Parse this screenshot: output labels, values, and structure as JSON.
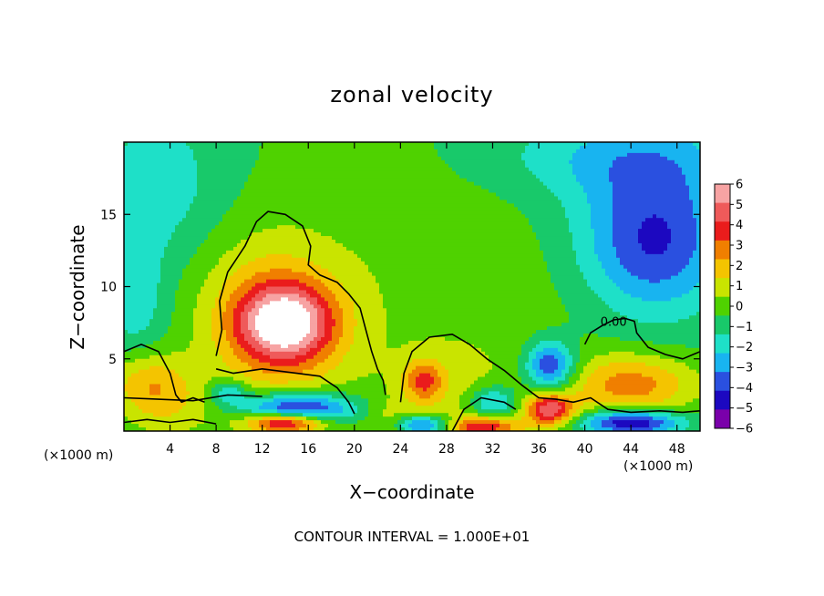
{
  "chart_data": {
    "type": "heatmap",
    "title": "zonal velocity",
    "xlabel": "X−coordinate",
    "ylabel": "Z−coordinate",
    "x_unit_left": "(×1000 m)",
    "x_unit_right": "(×1000 m)",
    "footer": "CONTOUR INTERVAL = 1.000E+01",
    "contour_label": "0.00",
    "xlim": [
      0,
      50
    ],
    "ylim": [
      0,
      20
    ],
    "x_ticks": [
      4,
      8,
      12,
      16,
      20,
      24,
      28,
      32,
      36,
      40,
      44,
      48
    ],
    "y_ticks": [
      5,
      10,
      15
    ],
    "colorbar": {
      "ticks": [
        "6",
        "5",
        "4",
        "3",
        "2",
        "1",
        "0",
        "−1",
        "−2",
        "−3",
        "−4",
        "−5",
        "−6"
      ],
      "colors": [
        "#f7a3a3",
        "#ef5a5a",
        "#ea1c1c",
        "#f07f00",
        "#f4c400",
        "#c9e400",
        "#4fd200",
        "#18c96a",
        "#1ee0c8",
        "#18b4f0",
        "#2a50e0",
        "#1c08c0",
        "#7a00aa"
      ]
    },
    "background_value": -1.0,
    "features": [
      {
        "x": 14,
        "z": 7.5,
        "value": 5.8,
        "sx": 2.8,
        "sz": 1.8
      },
      {
        "x": 13.5,
        "z": 6.5,
        "value": 2.5,
        "sx": 4.5,
        "sz": 3.5
      },
      {
        "x": 12,
        "z": 10,
        "value": 1.2,
        "sx": 4.5,
        "sz": 3.5
      },
      {
        "x": 15,
        "z": 1.5,
        "value": -5.5,
        "sx": 3.5,
        "sz": 0.8
      },
      {
        "x": 14,
        "z": 0.6,
        "value": 6.5,
        "sx": 2.5,
        "sz": 0.5
      },
      {
        "x": 9,
        "z": 2.7,
        "value": -2.5,
        "sx": 1.2,
        "sz": 0.6
      },
      {
        "x": 2,
        "z": 3.5,
        "value": 2.5,
        "sx": 2.5,
        "sz": 1.5
      },
      {
        "x": 4,
        "z": 1.5,
        "value": 1.5,
        "sx": 3,
        "sz": 1.5
      },
      {
        "x": 26,
        "z": 3.5,
        "value": 3.2,
        "sx": 1.2,
        "sz": 1.0
      },
      {
        "x": 28,
        "z": 2.5,
        "value": 1.2,
        "sx": 4,
        "sz": 2.5
      },
      {
        "x": 31,
        "z": 0.3,
        "value": 4.5,
        "sx": 2.5,
        "sz": 0.5
      },
      {
        "x": 26,
        "z": 0.4,
        "value": -4.5,
        "sx": 2,
        "sz": 0.5
      },
      {
        "x": 37,
        "z": 4.5,
        "value": -4.5,
        "sx": 1.5,
        "sz": 1.2
      },
      {
        "x": 37,
        "z": 1.5,
        "value": 5.5,
        "sx": 1.5,
        "sz": 0.8
      },
      {
        "x": 44,
        "z": 3.2,
        "value": 3.5,
        "sx": 4,
        "sz": 1.5
      },
      {
        "x": 44,
        "z": 0.6,
        "value": -5.5,
        "sx": 3,
        "sz": 0.6
      },
      {
        "x": 32,
        "z": 2,
        "value": -3.0,
        "sx": 1.5,
        "sz": 0.8
      },
      {
        "x": 23,
        "z": 0.5,
        "value": 1.5,
        "sx": 1.5,
        "sz": 1.0
      },
      {
        "x": 24,
        "z": 12,
        "value": 0.6,
        "sx": 8,
        "sz": 6
      },
      {
        "x": 33,
        "z": 8,
        "value": 0.4,
        "sx": 6,
        "sz": 5
      },
      {
        "x": 46,
        "z": 15,
        "value": -2.6,
        "sx": 5,
        "sz": 4
      },
      {
        "x": 46,
        "z": 12,
        "value": -2.0,
        "sx": 4,
        "sz": 3
      },
      {
        "x": 3,
        "z": 17,
        "value": -1.6,
        "sx": 4,
        "sz": 4
      },
      {
        "x": 1,
        "z": 9,
        "value": -1.6,
        "sx": 2,
        "sz": 3
      },
      {
        "x": 42,
        "z": 19,
        "value": -1.6,
        "sx": 8,
        "sz": 2
      }
    ],
    "zero_contours": [
      {
        "points": [
          [
            8,
            5.2
          ],
          [
            8.5,
            7
          ],
          [
            8.3,
            9
          ],
          [
            9,
            11
          ],
          [
            10.5,
            12.8
          ],
          [
            11.5,
            14.5
          ],
          [
            12.5,
            15.2
          ],
          [
            14,
            15
          ],
          [
            15.5,
            14.2
          ],
          [
            16.2,
            12.8
          ],
          [
            16,
            11.5
          ],
          [
            17,
            10.8
          ],
          [
            18.5,
            10.3
          ],
          [
            19.5,
            9.5
          ],
          [
            20.5,
            8.5
          ],
          [
            21,
            7
          ],
          [
            21.5,
            5.5
          ],
          [
            22,
            4.3
          ],
          [
            22.5,
            3.5
          ],
          [
            22.7,
            2.5
          ]
        ]
      },
      {
        "points": [
          [
            0,
            5.5
          ],
          [
            1.5,
            6
          ],
          [
            3,
            5.5
          ],
          [
            4,
            4
          ],
          [
            4.5,
            2.5
          ],
          [
            5,
            2
          ],
          [
            6,
            2.3
          ],
          [
            7,
            2
          ]
        ]
      },
      {
        "points": [
          [
            8,
            4.3
          ],
          [
            9.5,
            4
          ],
          [
            12,
            4.3
          ],
          [
            15,
            4
          ],
          [
            17,
            3.8
          ],
          [
            18.5,
            3
          ],
          [
            19.5,
            2
          ],
          [
            20,
            1.2
          ]
        ]
      },
      {
        "points": [
          [
            0,
            2.3
          ],
          [
            3,
            2.2
          ],
          [
            6,
            2.1
          ],
          [
            9,
            2.5
          ],
          [
            12,
            2.4
          ]
        ]
      },
      {
        "points": [
          [
            24,
            2
          ],
          [
            24.3,
            4
          ],
          [
            25,
            5.5
          ],
          [
            26.5,
            6.5
          ],
          [
            28.5,
            6.7
          ],
          [
            30,
            6
          ],
          [
            31.5,
            5
          ],
          [
            33,
            4.2
          ],
          [
            34.5,
            3.2
          ],
          [
            36,
            2.3
          ],
          [
            37.5,
            2.2
          ],
          [
            39,
            2
          ],
          [
            40.5,
            2.3
          ],
          [
            42,
            1.5
          ],
          [
            44,
            1.3
          ],
          [
            46.5,
            1.4
          ],
          [
            48.5,
            1.3
          ],
          [
            50,
            1.4
          ]
        ]
      },
      {
        "points": [
          [
            40,
            6
          ],
          [
            40.5,
            6.8
          ],
          [
            41.5,
            7.3
          ],
          [
            42.5,
            7.7
          ],
          [
            43.5,
            7.8
          ],
          [
            44.3,
            7.6
          ],
          [
            44.5,
            6.8
          ],
          [
            45.5,
            5.8
          ],
          [
            47,
            5.3
          ],
          [
            48.5,
            5
          ],
          [
            50,
            5.5
          ]
        ]
      },
      {
        "points": [
          [
            28.5,
            0
          ],
          [
            29.5,
            1.5
          ],
          [
            31,
            2.3
          ],
          [
            33,
            2
          ],
          [
            34,
            1.5
          ]
        ]
      },
      {
        "points": [
          [
            0,
            0.6
          ],
          [
            2,
            0.8
          ],
          [
            4,
            0.6
          ],
          [
            6,
            0.8
          ],
          [
            8,
            0.5
          ]
        ]
      }
    ],
    "contour_label_at": {
      "x": 42.5,
      "z": 7.6
    }
  }
}
